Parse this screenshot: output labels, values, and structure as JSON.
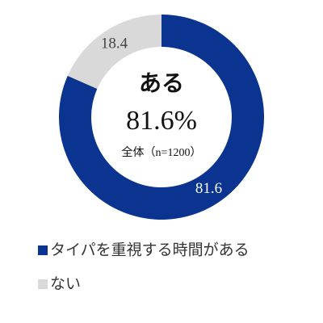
{
  "chart_data": {
    "type": "pie",
    "center_label": "ある",
    "center_value": "81.6%",
    "center_note": "全体（n=1200）",
    "categories": [
      "タイパを重視する時間がある",
      "ない"
    ],
    "values": [
      81.6,
      18.4
    ],
    "colors": [
      "#0a3490",
      "#d9d9d9"
    ],
    "label_colors": [
      "#ffffff",
      "#444444"
    ]
  }
}
